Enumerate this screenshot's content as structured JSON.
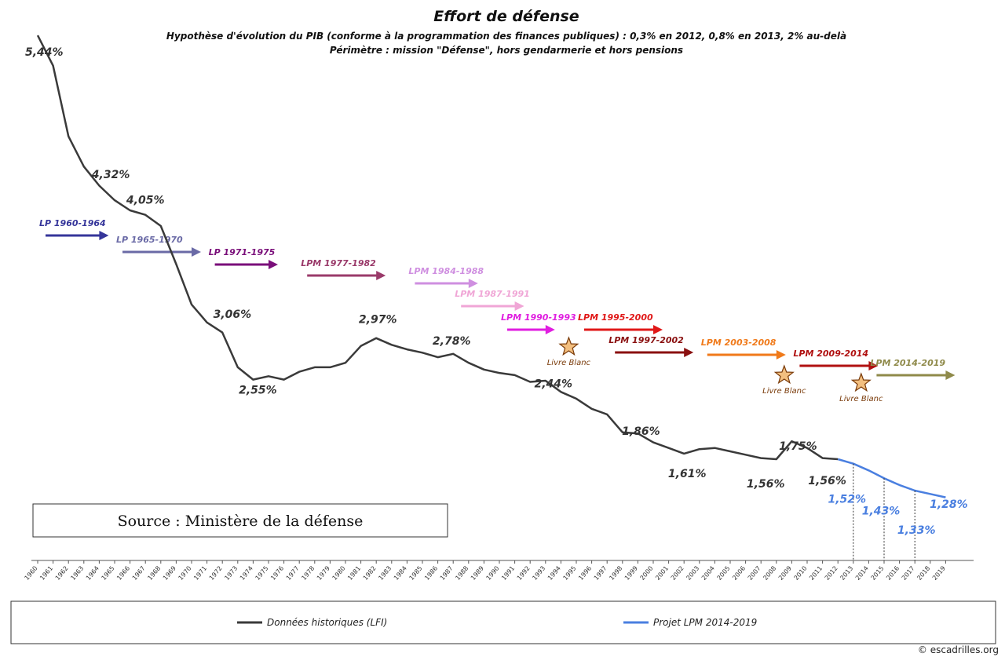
{
  "chart_data": {
    "type": "line",
    "title": "Effort de défense",
    "subtitle_1": "Hypothèse d'évolution du PIB (conforme à la programmation des finances publiques) : 0,3% en 2012, 0,8% en 2013, 2% au-delà",
    "subtitle_2": "Périmètre : mission \"Défense\", hors gendarmerie et hors pensions",
    "source_box": "Source : Ministère de la défense",
    "copyright": "© escadrilles.org",
    "ylim": [
      1.0,
      5.6
    ],
    "x": [
      1960,
      1961,
      1962,
      1963,
      1964,
      1965,
      1966,
      1967,
      1968,
      1969,
      1970,
      1971,
      1972,
      1973,
      1974,
      1975,
      1976,
      1977,
      1978,
      1979,
      1980,
      1981,
      1982,
      1983,
      1984,
      1985,
      1986,
      1987,
      1988,
      1989,
      1990,
      1991,
      1992,
      1993,
      1994,
      1995,
      1996,
      1997,
      1998,
      1999,
      2000,
      2001,
      2002,
      2003,
      2004,
      2005,
      2006,
      2007,
      2008,
      2009,
      2010,
      2011,
      2012,
      2013,
      2014,
      2015,
      2016,
      2017,
      2018,
      2019
    ],
    "series": [
      {
        "name": "Données historiques (LFI)",
        "color": "#3a3a3a",
        "x": [
          1960,
          1961,
          1962,
          1963,
          1964,
          1965,
          1966,
          1967,
          1968,
          1969,
          1970,
          1971,
          1972,
          1973,
          1974,
          1975,
          1976,
          1977,
          1978,
          1979,
          1980,
          1981,
          1982,
          1983,
          1984,
          1985,
          1986,
          1987,
          1988,
          1989,
          1990,
          1991,
          1992,
          1993,
          1994,
          1995,
          1996,
          1997,
          1998,
          1999,
          2000,
          2001,
          2002,
          2003,
          2004,
          2005,
          2006,
          2007,
          2008,
          2009,
          2010,
          2011,
          2012
        ],
        "values": [
          5.62,
          5.35,
          4.72,
          4.45,
          4.28,
          4.15,
          4.06,
          4.02,
          3.92,
          3.58,
          3.22,
          3.06,
          2.97,
          2.66,
          2.55,
          2.58,
          2.55,
          2.62,
          2.66,
          2.66,
          2.7,
          2.85,
          2.92,
          2.86,
          2.82,
          2.79,
          2.75,
          2.78,
          2.7,
          2.64,
          2.61,
          2.59,
          2.53,
          2.54,
          2.44,
          2.38,
          2.29,
          2.24,
          2.08,
          2.07,
          1.99,
          1.94,
          1.89,
          1.93,
          1.94,
          1.91,
          1.88,
          1.85,
          1.84,
          2.0,
          1.94,
          1.85,
          1.84
        ]
      },
      {
        "name": "Projet LPM 2014-2019",
        "color": "#4a7fe0",
        "x": [
          2012,
          2013,
          2014,
          2015,
          2016,
          2017,
          2018,
          2019
        ],
        "values": [
          1.84,
          1.8,
          1.74,
          1.67,
          1.61,
          1.56,
          1.53,
          1.5
        ]
      }
    ],
    "annotations": [
      {
        "text": "5,44%",
        "x": 1960,
        "y": 5.44
      },
      {
        "text": "4,32%",
        "x": 1963,
        "y": 4.32
      },
      {
        "text": "4,05%",
        "x": 1967,
        "y": 4.05
      },
      {
        "text": "3,06%",
        "x": 1971,
        "y": 3.06
      },
      {
        "text": "2,55%",
        "x": 1974,
        "y": 2.55
      },
      {
        "text": "2,97%",
        "x": 1982,
        "y": 2.97
      },
      {
        "text": "2,78%",
        "x": 1987,
        "y": 2.78
      },
      {
        "text": "2,44%",
        "x": 1993,
        "y": 2.44
      },
      {
        "text": "1,86%",
        "x": 1999,
        "y": 1.86
      },
      {
        "text": "1,61%",
        "x": 2002,
        "y": 1.61
      },
      {
        "text": "1,56%",
        "x": 2007,
        "y": 1.56
      },
      {
        "text": "1,75%",
        "x": 2009,
        "y": 1.75
      },
      {
        "text": "1,56%",
        "x": 2011,
        "y": 1.56
      },
      {
        "text": "1,52%",
        "x": 2013,
        "y": 1.52
      },
      {
        "text": "1,43%",
        "x": 2015,
        "y": 1.43
      },
      {
        "text": "1,33%",
        "x": 2017,
        "y": 1.33
      },
      {
        "text": "1,28%",
        "x": 2019,
        "y": 1.28
      }
    ],
    "programmes": [
      {
        "label": "LP 1960-1964",
        "start": 1960,
        "end": 1964,
        "color": "#35359a"
      },
      {
        "label": "LP 1965-1970",
        "start": 1965,
        "end": 1970,
        "color": "#6a6aa6"
      },
      {
        "label": "LP 1971-1975",
        "start": 1971,
        "end": 1975,
        "color": "#7a0f7a"
      },
      {
        "label": "LPM 1977-1982",
        "start": 1977,
        "end": 1982,
        "color": "#9a3a6a"
      },
      {
        "label": "LPM 1984-1988",
        "start": 1984,
        "end": 1988,
        "color": "#cf8fe0"
      },
      {
        "label": "LPM 1987-1991",
        "start": 1987,
        "end": 1991,
        "color": "#f0a6d6"
      },
      {
        "label": "LPM 1990-1993",
        "start": 1990,
        "end": 1993,
        "color": "#e01ee0"
      },
      {
        "label": "LPM 1995-2000",
        "start": 1995,
        "end": 2000,
        "color": "#e01818"
      },
      {
        "label": "LPM 1997-2002",
        "start": 1997,
        "end": 2002,
        "color": "#8a1010"
      },
      {
        "label": "LPM 2003-2008",
        "start": 2003,
        "end": 2008,
        "color": "#f07a1a"
      },
      {
        "label": "LPM 2009-2014",
        "start": 2009,
        "end": 2014,
        "color": "#b01010"
      },
      {
        "label": "LPM 2014-2019",
        "start": 2014,
        "end": 2019,
        "color": "#8f8a4a"
      }
    ],
    "livre_blanc": [
      {
        "label": "Livre Blanc",
        "year": 1994
      },
      {
        "label": "Livre Blanc",
        "year": 2008
      },
      {
        "label": "Livre Blanc",
        "year": 2013
      }
    ],
    "legend": [
      {
        "label": "Données historiques (LFI)",
        "color": "#3a3a3a"
      },
      {
        "label": "Projet LPM 2014-2019",
        "color": "#4a7fe0"
      }
    ],
    "legend_position": "bottom",
    "grid": false
  }
}
